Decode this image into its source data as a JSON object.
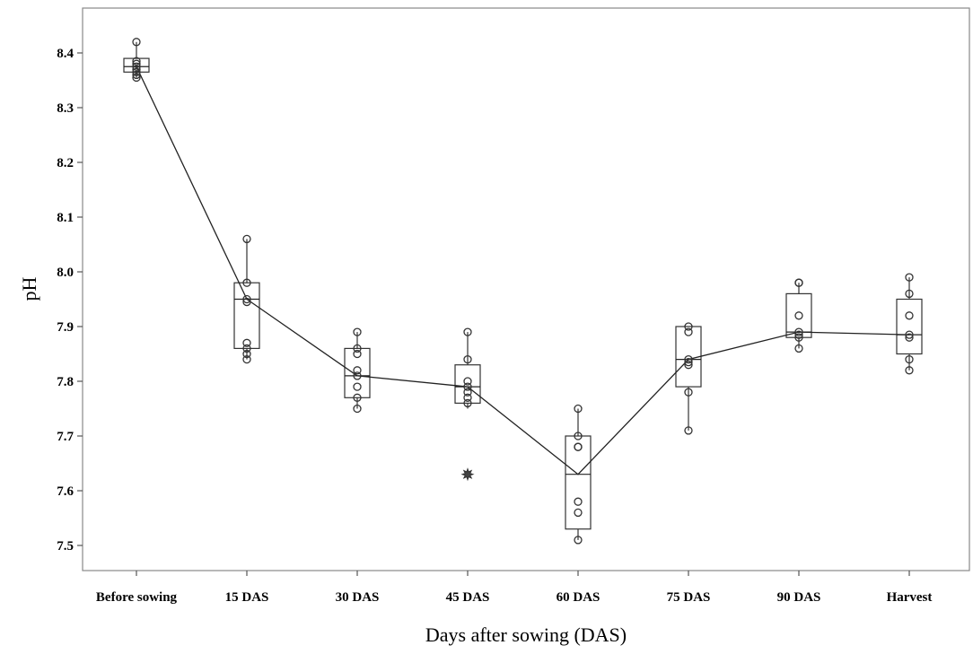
{
  "chart_data": {
    "type": "box",
    "xlabel": "Days after sowing (DAS)",
    "ylabel": "pH",
    "ylim": [
      7.45,
      8.45
    ],
    "yticks": [
      7.5,
      7.6,
      7.7,
      7.8,
      7.9,
      8.0,
      8.1,
      8.2,
      8.3,
      8.4
    ],
    "categories": [
      "Before sowing",
      "15 DAS",
      "30 DAS",
      "45 DAS",
      "60 DAS",
      "75 DAS",
      "90 DAS",
      "Harvest"
    ],
    "boxes": [
      {
        "q1": 8.365,
        "median": 8.375,
        "q3": 8.39,
        "min": 8.355,
        "max": 8.42,
        "points": [
          8.42,
          8.385,
          8.38,
          8.375,
          8.37,
          8.365,
          8.36,
          8.355
        ],
        "outliers": []
      },
      {
        "q1": 7.86,
        "median": 7.95,
        "q3": 7.98,
        "min": 7.84,
        "max": 8.06,
        "points": [
          8.06,
          7.98,
          7.95,
          7.945,
          7.87,
          7.86,
          7.85,
          7.84
        ],
        "outliers": []
      },
      {
        "q1": 7.77,
        "median": 7.81,
        "q3": 7.86,
        "min": 7.75,
        "max": 7.89,
        "points": [
          7.89,
          7.86,
          7.85,
          7.82,
          7.81,
          7.79,
          7.77,
          7.75
        ],
        "outliers": []
      },
      {
        "q1": 7.76,
        "median": 7.79,
        "q3": 7.83,
        "min": 7.75,
        "max": 7.89,
        "points": [
          7.89,
          7.84,
          7.8,
          7.79,
          7.78,
          7.77,
          7.76
        ],
        "outliers": [
          7.63
        ]
      },
      {
        "q1": 7.53,
        "median": 7.63,
        "q3": 7.7,
        "min": 7.51,
        "max": 7.75,
        "points": [
          7.75,
          7.7,
          7.68,
          7.68,
          7.58,
          7.56,
          7.51
        ],
        "outliers": []
      },
      {
        "q1": 7.79,
        "median": 7.84,
        "q3": 7.9,
        "min": 7.71,
        "max": 7.9,
        "points": [
          7.9,
          7.89,
          7.84,
          7.835,
          7.83,
          7.78,
          7.71
        ],
        "outliers": []
      },
      {
        "q1": 7.88,
        "median": 7.89,
        "q3": 7.96,
        "min": 7.86,
        "max": 7.98,
        "points": [
          7.98,
          7.98,
          7.92,
          7.89,
          7.885,
          7.88,
          7.86
        ],
        "outliers": []
      },
      {
        "q1": 7.85,
        "median": 7.885,
        "q3": 7.95,
        "min": 7.82,
        "max": 7.99,
        "points": [
          7.99,
          7.96,
          7.92,
          7.885,
          7.88,
          7.84,
          7.82
        ],
        "outliers": []
      }
    ],
    "mean_line": [
      8.375,
      7.95,
      7.81,
      7.79,
      7.63,
      7.84,
      7.89,
      7.885
    ],
    "grid": false,
    "legend": "none",
    "colors": {
      "frame": "#888888",
      "box": "#333333",
      "line": "#222222",
      "background": "#ffffff"
    }
  }
}
